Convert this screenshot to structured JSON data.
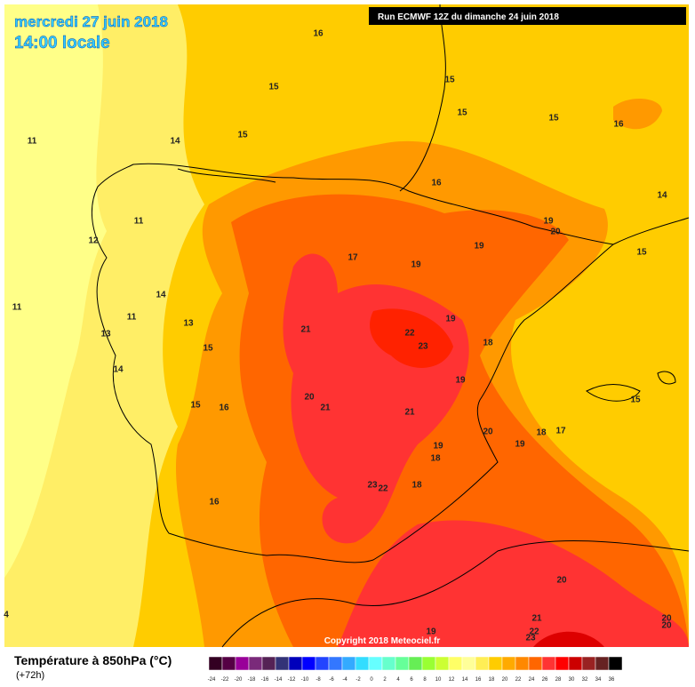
{
  "header": {
    "date": "mercredi 27 juin 2018",
    "time": "14:00 locale",
    "run": "Run ECMWF 12Z du dimanche 24 juin 2018"
  },
  "map": {
    "labels": [
      "16",
      "15",
      "15",
      "15",
      "15",
      "16",
      "11",
      "14",
      "15",
      "16",
      "14",
      "11",
      "12",
      "19",
      "20",
      "19",
      "15",
      "17",
      "19",
      "14",
      "11",
      "11",
      "13",
      "19",
      "13",
      "21",
      "22",
      "23",
      "18",
      "15",
      "14",
      "19",
      "20",
      "15",
      "15",
      "16",
      "21",
      "21",
      "20",
      "18",
      "17",
      "19",
      "19",
      "18",
      "23",
      "22",
      "18",
      "16",
      "20",
      "21",
      "20",
      "20",
      "22",
      "19",
      "23",
      "4"
    ],
    "copyright": "Copyright 2018 Meteociel.fr"
  },
  "legend": {
    "title": "Température à 850hPa (°C)",
    "subtitle": "(+72h)",
    "ticks": [
      "-24",
      "-22",
      "-20",
      "-18",
      "-16",
      "-14",
      "-12",
      "-10",
      "-8",
      "-6",
      "-4",
      "-2",
      "0",
      "2",
      "4",
      "6",
      "8",
      "10",
      "12",
      "14",
      "16",
      "18",
      "20",
      "22",
      "24",
      "26",
      "28",
      "30",
      "32",
      "34",
      "36"
    ]
  }
}
